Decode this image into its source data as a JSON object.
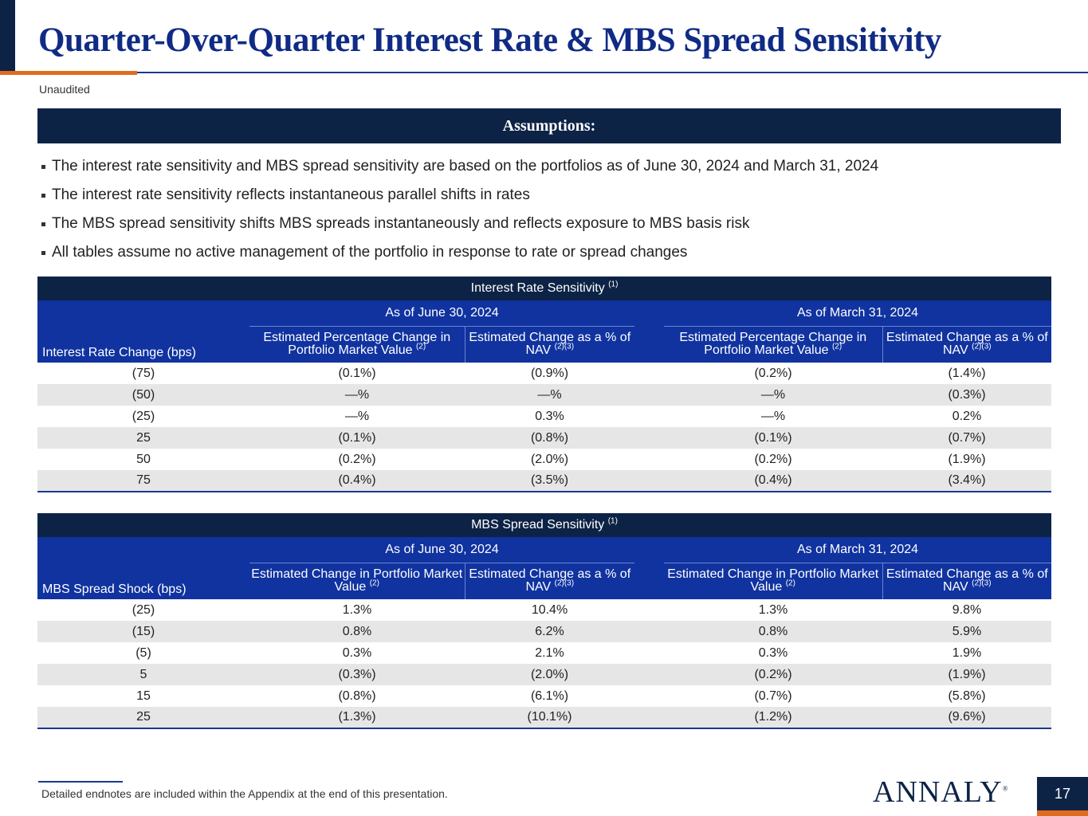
{
  "title": "Quarter-Over-Quarter Interest Rate & MBS Spread Sensitivity",
  "subtitle": "Unaudited",
  "assumptions": {
    "heading": "Assumptions:",
    "bullets": [
      "The interest rate sensitivity and MBS spread sensitivity are based on the portfolios as of June 30, 2024 and March 31, 2024",
      "The interest rate sensitivity reflects instantaneous parallel shifts in rates",
      "The MBS spread sensitivity shifts MBS spreads instantaneously and reflects exposure to MBS basis risk",
      "All tables assume no active management of the portfolio in response to rate or spread changes"
    ]
  },
  "rate_table": {
    "title": "Interest Rate Sensitivity",
    "title_note": "(1)",
    "row_header": "Interest Rate Change (bps)",
    "period1": "As of June 30, 2024",
    "period2": "As of March 31, 2024",
    "col_a": "Estimated Percentage Change in Portfolio Market Value",
    "col_a_note": "(2)",
    "col_b": "Estimated Change as a % of NAV",
    "col_b_note": "(2)(3)",
    "rows": [
      [
        "(75)",
        "(0.1%)",
        "(0.9%)",
        "(0.2%)",
        "(1.4%)"
      ],
      [
        "(50)",
        "—%",
        "—%",
        "—%",
        "(0.3%)"
      ],
      [
        "(25)",
        "—%",
        "0.3%",
        "—%",
        "0.2%"
      ],
      [
        "25",
        "(0.1%)",
        "(0.8%)",
        "(0.1%)",
        "(0.7%)"
      ],
      [
        "50",
        "(0.2%)",
        "(2.0%)",
        "(0.2%)",
        "(1.9%)"
      ],
      [
        "75",
        "(0.4%)",
        "(3.5%)",
        "(0.4%)",
        "(3.4%)"
      ]
    ]
  },
  "spread_table": {
    "title": "MBS Spread Sensitivity",
    "title_note": "(1)",
    "row_header": "MBS Spread Shock (bps)",
    "period1": "As of June 30, 2024",
    "period2": "As of March 31, 2024",
    "col_a": "Estimated Change in Portfolio Market Value",
    "col_a_note": "(2)",
    "col_b": "Estimated Change as a % of NAV",
    "col_b_note": "(2)(3)",
    "rows": [
      [
        "(25)",
        "1.3%",
        "10.4%",
        "1.3%",
        "9.8%"
      ],
      [
        "(15)",
        "0.8%",
        "6.2%",
        "0.8%",
        "5.9%"
      ],
      [
        "(5)",
        "0.3%",
        "2.1%",
        "0.3%",
        "1.9%"
      ],
      [
        "5",
        "(0.3%)",
        "(2.0%)",
        "(0.2%)",
        "(1.9%)"
      ],
      [
        "15",
        "(0.8%)",
        "(6.1%)",
        "(0.7%)",
        "(5.8%)"
      ],
      [
        "25",
        "(1.3%)",
        "(10.1%)",
        "(1.2%)",
        "(9.6%)"
      ]
    ]
  },
  "footnote": "Detailed endnotes are included within the Appendix at the end of this presentation.",
  "logo_text": "ANNALY",
  "logo_mark": "®",
  "page_number": "17"
}
